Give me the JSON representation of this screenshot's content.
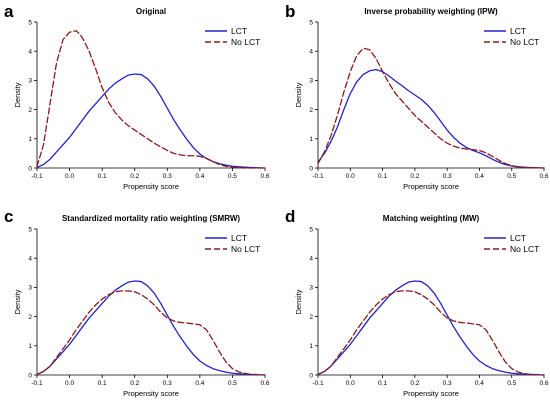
{
  "colors": {
    "lct": "#2323c8",
    "no_lct": "#8b1a1a"
  },
  "chart_data": [
    {
      "type": "line",
      "letter": "a",
      "title": "Original",
      "xlabel": "Propensity score",
      "ylabel": "Density",
      "xlim": [
        -0.1,
        0.6
      ],
      "ylim": [
        0,
        5
      ],
      "xticks": [
        "-0.1",
        "0.0",
        "0.1",
        "0.2",
        "0.3",
        "0.4",
        "0.5",
        "0.6"
      ],
      "yticks": [
        "0",
        "1",
        "2",
        "3",
        "4",
        "5"
      ],
      "legend_position": "top-right",
      "x": [
        -0.1,
        -0.08,
        -0.06,
        -0.04,
        -0.02,
        0.0,
        0.02,
        0.03,
        0.04,
        0.06,
        0.08,
        0.1,
        0.12,
        0.14,
        0.16,
        0.18,
        0.2,
        0.22,
        0.24,
        0.26,
        0.28,
        0.3,
        0.32,
        0.34,
        0.36,
        0.38,
        0.4,
        0.42,
        0.44,
        0.46,
        0.48,
        0.5,
        0.52,
        0.55,
        0.6
      ],
      "series": [
        {
          "name": "LCT",
          "style": "solid",
          "values": [
            0.02,
            0.12,
            0.3,
            0.55,
            0.8,
            1.05,
            1.35,
            1.5,
            1.65,
            1.95,
            2.2,
            2.45,
            2.7,
            2.9,
            3.05,
            3.18,
            3.22,
            3.2,
            3.05,
            2.8,
            2.45,
            2.05,
            1.65,
            1.3,
            0.98,
            0.7,
            0.48,
            0.33,
            0.22,
            0.15,
            0.1,
            0.06,
            0.04,
            0.02,
            0.0
          ]
        },
        {
          "name": "No LCT",
          "style": "dashed",
          "values": [
            0.05,
            0.8,
            2.2,
            3.6,
            4.4,
            4.65,
            4.7,
            4.6,
            4.45,
            4.0,
            3.4,
            2.75,
            2.25,
            1.9,
            1.65,
            1.45,
            1.3,
            1.15,
            1.0,
            0.85,
            0.72,
            0.6,
            0.5,
            0.45,
            0.42,
            0.42,
            0.4,
            0.33,
            0.22,
            0.12,
            0.06,
            0.03,
            0.01,
            0.0,
            0.0
          ]
        }
      ]
    },
    {
      "type": "line",
      "letter": "b",
      "title": "Inverse probability weighting (IPW)",
      "xlabel": "Propensity score",
      "ylabel": "Density",
      "xlim": [
        -0.1,
        0.6
      ],
      "ylim": [
        0,
        5
      ],
      "xticks": [
        "-0.1",
        "0.0",
        "0.1",
        "0.2",
        "0.3",
        "0.4",
        "0.5",
        "0.6"
      ],
      "yticks": [
        "0",
        "1",
        "2",
        "3",
        "4",
        "5"
      ],
      "legend_position": "top-right",
      "x": [
        -0.1,
        -0.08,
        -0.06,
        -0.04,
        -0.02,
        0.0,
        0.02,
        0.04,
        0.06,
        0.08,
        0.1,
        0.12,
        0.14,
        0.16,
        0.18,
        0.2,
        0.22,
        0.24,
        0.26,
        0.28,
        0.3,
        0.32,
        0.34,
        0.36,
        0.38,
        0.4,
        0.42,
        0.44,
        0.46,
        0.48,
        0.5,
        0.52,
        0.55,
        0.6
      ],
      "series": [
        {
          "name": "LCT",
          "style": "solid",
          "values": [
            0.2,
            0.5,
            0.9,
            1.4,
            2.0,
            2.55,
            2.95,
            3.2,
            3.33,
            3.37,
            3.3,
            3.15,
            2.98,
            2.82,
            2.65,
            2.5,
            2.35,
            2.15,
            1.9,
            1.6,
            1.3,
            1.05,
            0.85,
            0.7,
            0.6,
            0.52,
            0.42,
            0.3,
            0.2,
            0.12,
            0.07,
            0.04,
            0.02,
            0.0
          ]
        },
        {
          "name": "No LCT",
          "style": "dashed",
          "values": [
            0.15,
            0.55,
            1.1,
            1.8,
            2.6,
            3.3,
            3.85,
            4.1,
            4.05,
            3.75,
            3.3,
            2.9,
            2.55,
            2.3,
            2.05,
            1.8,
            1.6,
            1.4,
            1.2,
            1.0,
            0.85,
            0.75,
            0.68,
            0.65,
            0.63,
            0.6,
            0.52,
            0.4,
            0.27,
            0.15,
            0.08,
            0.04,
            0.01,
            0.0
          ]
        }
      ]
    },
    {
      "type": "line",
      "letter": "c",
      "title": "Standardized mortality ratio weighting (SMRW)",
      "xlabel": "Propensity score",
      "ylabel": "Density",
      "xlim": [
        -0.1,
        0.6
      ],
      "ylim": [
        0,
        5
      ],
      "xticks": [
        "-0.1",
        "0.0",
        "0.1",
        "0.2",
        "0.3",
        "0.4",
        "0.5",
        "0.6"
      ],
      "yticks": [
        "0",
        "1",
        "2",
        "3",
        "4",
        "5"
      ],
      "legend_position": "top-right",
      "x": [
        -0.1,
        -0.08,
        -0.06,
        -0.04,
        -0.02,
        0.0,
        0.02,
        0.04,
        0.06,
        0.08,
        0.1,
        0.12,
        0.14,
        0.16,
        0.18,
        0.2,
        0.22,
        0.24,
        0.26,
        0.28,
        0.3,
        0.32,
        0.34,
        0.36,
        0.38,
        0.4,
        0.42,
        0.44,
        0.46,
        0.48,
        0.5,
        0.52,
        0.55,
        0.6
      ],
      "series": [
        {
          "name": "LCT",
          "style": "solid",
          "values": [
            0.02,
            0.12,
            0.3,
            0.55,
            0.8,
            1.05,
            1.35,
            1.65,
            1.95,
            2.2,
            2.45,
            2.7,
            2.9,
            3.05,
            3.18,
            3.22,
            3.2,
            3.05,
            2.8,
            2.45,
            2.05,
            1.65,
            1.3,
            0.98,
            0.7,
            0.48,
            0.33,
            0.22,
            0.15,
            0.1,
            0.06,
            0.04,
            0.02,
            0.0
          ]
        },
        {
          "name": "No LCT",
          "style": "dashed",
          "values": [
            0.02,
            0.12,
            0.3,
            0.6,
            0.9,
            1.2,
            1.55,
            1.85,
            2.15,
            2.4,
            2.6,
            2.75,
            2.85,
            2.88,
            2.88,
            2.85,
            2.75,
            2.6,
            2.4,
            2.15,
            1.95,
            1.85,
            1.8,
            1.78,
            1.75,
            1.72,
            1.55,
            1.2,
            0.8,
            0.45,
            0.22,
            0.1,
            0.03,
            0.0
          ]
        }
      ]
    },
    {
      "type": "line",
      "letter": "d",
      "title": "Matching weighting (MW)",
      "xlabel": "Propensity score",
      "ylabel": "Density",
      "xlim": [
        -0.1,
        0.6
      ],
      "ylim": [
        0,
        5
      ],
      "xticks": [
        "-0.1",
        "0.0",
        "0.1",
        "0.2",
        "0.3",
        "0.4",
        "0.5",
        "0.6"
      ],
      "yticks": [
        "0",
        "1",
        "2",
        "3",
        "4",
        "5"
      ],
      "legend_position": "top-right",
      "x": [
        -0.1,
        -0.08,
        -0.06,
        -0.04,
        -0.02,
        0.0,
        0.02,
        0.04,
        0.06,
        0.08,
        0.1,
        0.12,
        0.14,
        0.16,
        0.18,
        0.2,
        0.22,
        0.24,
        0.26,
        0.28,
        0.3,
        0.32,
        0.34,
        0.36,
        0.38,
        0.4,
        0.42,
        0.44,
        0.46,
        0.48,
        0.5,
        0.52,
        0.55,
        0.6
      ],
      "series": [
        {
          "name": "LCT",
          "style": "solid",
          "values": [
            0.02,
            0.12,
            0.3,
            0.55,
            0.8,
            1.05,
            1.35,
            1.65,
            1.95,
            2.2,
            2.45,
            2.7,
            2.9,
            3.05,
            3.18,
            3.22,
            3.2,
            3.05,
            2.8,
            2.45,
            2.05,
            1.65,
            1.3,
            0.98,
            0.7,
            0.48,
            0.33,
            0.22,
            0.15,
            0.1,
            0.06,
            0.04,
            0.02,
            0.0
          ]
        },
        {
          "name": "No LCT",
          "style": "dashed",
          "values": [
            0.02,
            0.12,
            0.3,
            0.6,
            0.9,
            1.2,
            1.55,
            1.85,
            2.15,
            2.4,
            2.6,
            2.75,
            2.85,
            2.88,
            2.88,
            2.85,
            2.75,
            2.6,
            2.4,
            2.15,
            1.95,
            1.85,
            1.8,
            1.78,
            1.75,
            1.72,
            1.55,
            1.2,
            0.8,
            0.45,
            0.22,
            0.1,
            0.03,
            0.0
          ]
        }
      ]
    }
  ]
}
